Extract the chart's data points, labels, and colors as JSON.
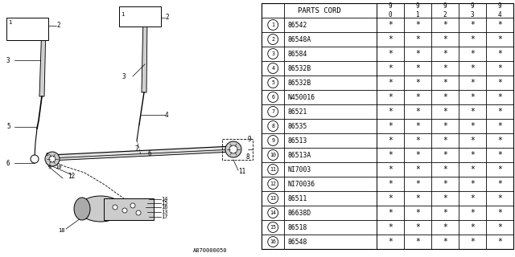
{
  "diagram_label": "A870000050",
  "table_header": "PARTS CORD",
  "col_headers": [
    "9\n0",
    "9\n1",
    "9\n2",
    "9\n3",
    "9\n4"
  ],
  "rows": [
    {
      "num": 1,
      "part": "86542",
      "vals": [
        "*",
        "*",
        "*",
        "*",
        "*"
      ]
    },
    {
      "num": 2,
      "part": "86548A",
      "vals": [
        "*",
        "*",
        "*",
        "*",
        "*"
      ]
    },
    {
      "num": 3,
      "part": "86584",
      "vals": [
        "*",
        "*",
        "*",
        "*",
        "*"
      ]
    },
    {
      "num": 4,
      "part": "86532B",
      "vals": [
        "*",
        "*",
        "*",
        "*",
        "*"
      ]
    },
    {
      "num": 5,
      "part": "86532B",
      "vals": [
        "*",
        "*",
        "*",
        "*",
        "*"
      ]
    },
    {
      "num": 6,
      "part": "N450016",
      "vals": [
        "*",
        "*",
        "*",
        "*",
        "*"
      ]
    },
    {
      "num": 7,
      "part": "86521",
      "vals": [
        "*",
        "*",
        "*",
        "*",
        "*"
      ]
    },
    {
      "num": 8,
      "part": "86535",
      "vals": [
        "*",
        "*",
        "*",
        "*",
        "*"
      ]
    },
    {
      "num": 9,
      "part": "86513",
      "vals": [
        "*",
        "*",
        "*",
        "*",
        "*"
      ]
    },
    {
      "num": 10,
      "part": "86513A",
      "vals": [
        "*",
        "*",
        "*",
        "*",
        "*"
      ]
    },
    {
      "num": 11,
      "part": "NI7003",
      "vals": [
        "*",
        "*",
        "*",
        "*",
        "*"
      ]
    },
    {
      "num": 12,
      "part": "NI70036",
      "vals": [
        "*",
        "*",
        "*",
        "*",
        "*"
      ]
    },
    {
      "num": 13,
      "part": "86511",
      "vals": [
        "*",
        "*",
        "*",
        "*",
        "*"
      ]
    },
    {
      "num": 14,
      "part": "86638D",
      "vals": [
        "*",
        "*",
        "*",
        "*",
        "*"
      ]
    },
    {
      "num": 15,
      "part": "86518",
      "vals": [
        "*",
        "*",
        "*",
        "*",
        "*"
      ]
    },
    {
      "num": 16,
      "part": "86548",
      "vals": [
        "*",
        "*",
        "*",
        "*",
        "*"
      ]
    }
  ],
  "bg_color": "#ffffff",
  "line_color": "#000000",
  "text_color": "#000000",
  "gray_color": "#888888",
  "light_gray": "#cccccc"
}
